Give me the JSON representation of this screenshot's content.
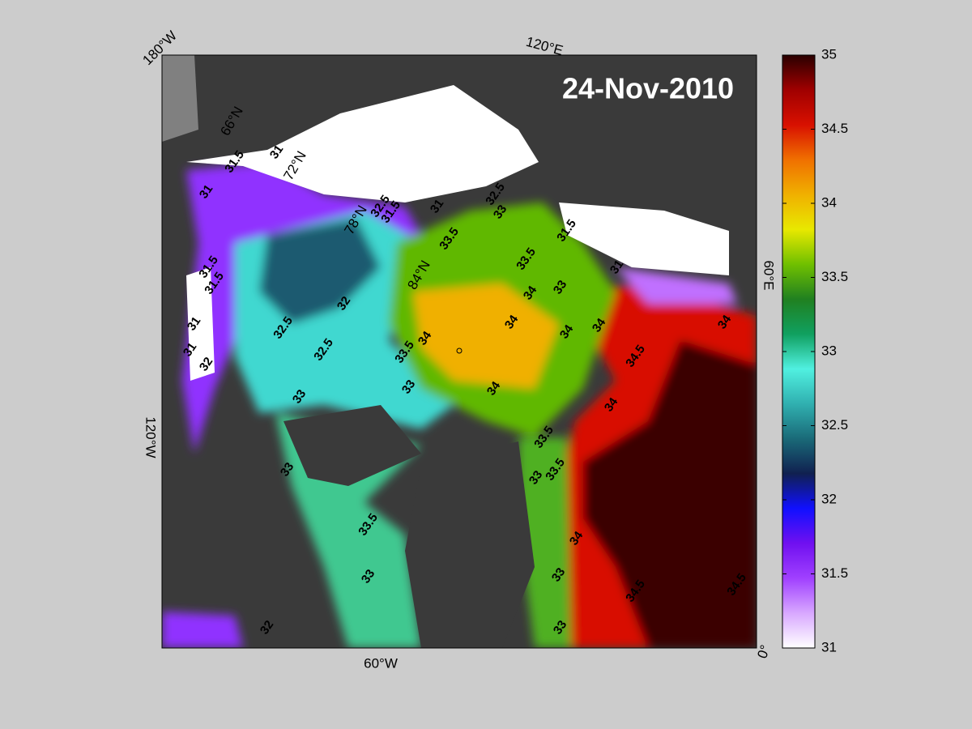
{
  "map": {
    "date_label": "24-Nov-2010",
    "longitude_labels": [
      "180°W",
      "120°E",
      "60°E",
      "0°",
      "60°W",
      "120°W"
    ],
    "latitude_labels": [
      "66°N",
      "72°N",
      "78°N",
      "84°N"
    ],
    "contour_labels": [
      31.5,
      31,
      31,
      31.5,
      31.5,
      31,
      32,
      32.5,
      32.5,
      32,
      31,
      31.5,
      32.5,
      33,
      33,
      33.5,
      33.5,
      33.5,
      34,
      34,
      34,
      34,
      34,
      33,
      32.5,
      31.5,
      31,
      31,
      34,
      34.5,
      34,
      33.5,
      33.5,
      33,
      33,
      33.5,
      34,
      33,
      33,
      34.5,
      34.5,
      34,
      32,
      33,
      33
    ]
  },
  "colorbar": {
    "lim": [
      31,
      35
    ],
    "ticks": [
      31,
      31.5,
      32,
      32.5,
      33,
      33.5,
      34,
      34.5,
      35
    ],
    "colormap": [
      "#ffffff",
      "#d8a8ff",
      "#a040ff",
      "#7010f0",
      "#1010ff",
      "#102050",
      "#1a6a78",
      "#30b0b0",
      "#50f0e0",
      "#10a060",
      "#208020",
      "#70c000",
      "#e8e800",
      "#f0b000",
      "#f07000",
      "#d81000",
      "#a00000",
      "#2a0000"
    ]
  }
}
